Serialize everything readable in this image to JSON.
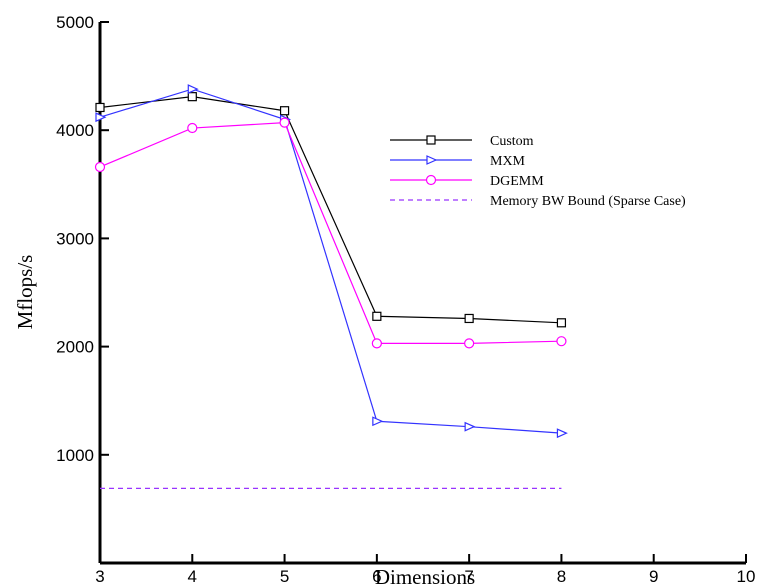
{
  "chart_data": {
    "type": "line",
    "title": "",
    "xlabel": "Dimensions",
    "ylabel": "Mflops/s",
    "xlim": [
      3,
      10
    ],
    "ylim": [
      0,
      5000
    ],
    "x_ticks": [
      3,
      4,
      5,
      6,
      7,
      8,
      9,
      10
    ],
    "y_ticks": [
      1000,
      2000,
      3000,
      4000,
      5000
    ],
    "grid": false,
    "legend_position": "upper-right",
    "series": [
      {
        "name": "Custom",
        "color": "#000000",
        "marker": "square",
        "dash": "solid",
        "x": [
          3,
          4,
          5,
          6,
          7,
          8
        ],
        "y": [
          4210,
          4310,
          4180,
          2280,
          2260,
          2220
        ]
      },
      {
        "name": "MXM",
        "color": "#3333ff",
        "marker": "triangle-right",
        "dash": "solid",
        "x": [
          3,
          4,
          5,
          6,
          7,
          8
        ],
        "y": [
          4120,
          4380,
          4100,
          1310,
          1260,
          1200
        ]
      },
      {
        "name": "DGEMM",
        "color": "#ff00ff",
        "marker": "circle",
        "dash": "solid",
        "x": [
          3,
          4,
          5,
          6,
          7,
          8
        ],
        "y": [
          3660,
          4020,
          4070,
          2030,
          2030,
          2050
        ]
      },
      {
        "name": "Memory BW Bound (Sparse Case)",
        "color": "#9933ff",
        "marker": "none",
        "dash": "dashed",
        "x": [
          3,
          8
        ],
        "y": [
          690,
          690
        ]
      }
    ]
  }
}
